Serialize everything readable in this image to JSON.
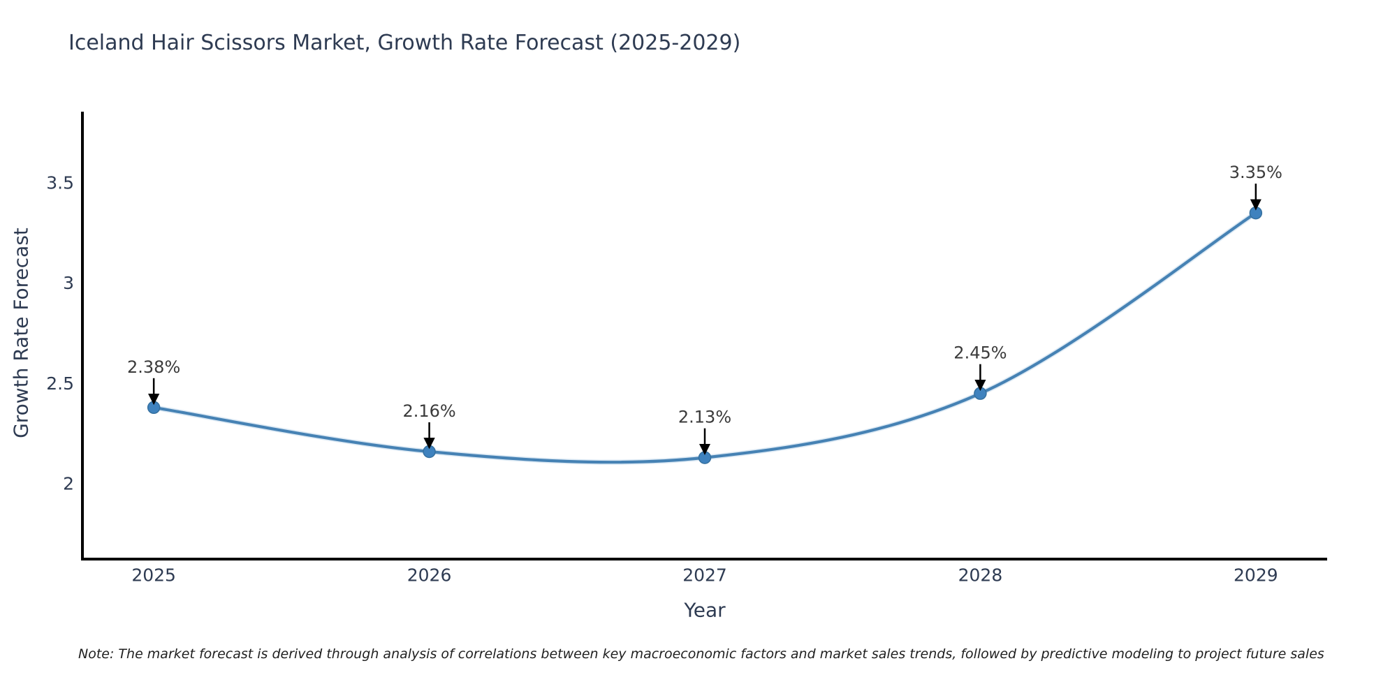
{
  "chart_data": {
    "type": "line",
    "title": "Iceland Hair Scissors Market, Growth Rate Forecast (2025-2029)",
    "xlabel": "Year",
    "ylabel": "Growth Rate Forecast",
    "x": [
      2025,
      2026,
      2027,
      2028,
      2029
    ],
    "series": [
      {
        "name": "Growth Rate Forecast",
        "values": [
          2.38,
          2.16,
          2.13,
          2.45,
          3.35
        ]
      }
    ],
    "point_labels": [
      "2.38%",
      "2.16%",
      "2.13%",
      "2.45%",
      "3.35%"
    ],
    "xticks": [
      "2025",
      "2026",
      "2027",
      "2028",
      "2029"
    ],
    "xtick_values": [
      2025,
      2026,
      2027,
      2028,
      2029
    ],
    "yticks": [
      "2",
      "2.5",
      "3",
      "3.5"
    ],
    "ytick_values": [
      2,
      2.5,
      3,
      3.5
    ],
    "xlim": [
      2024.741,
      2029.259
    ],
    "ylim": [
      1.624,
      3.855
    ],
    "grid": false,
    "legend": false,
    "note": "Note: The market forecast is derived through analysis of correlations between key macroeconomic factors and market sales trends, followed by predictive modeling to project future sales"
  },
  "colors": {
    "line": "#4682b4",
    "line_halo": "#b9d4ea",
    "marker_fill": "#3f82be",
    "marker_edge": "#35709f",
    "axis": "#000000",
    "title_text": "#2e3b52",
    "annotation_text": "#3a3a3a",
    "arrow": "#000000",
    "background": "#ffffff"
  }
}
